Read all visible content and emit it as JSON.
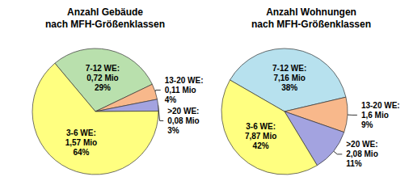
{
  "chart_data": [
    {
      "type": "pie",
      "title": "Anzahl Gebäude\nnach MFH-Größenklassen",
      "categories": [
        "7-12 WE:",
        "13-20 WE:",
        ">20 WE:",
        "3-6 WE:"
      ],
      "values": [
        29,
        4,
        3,
        64
      ],
      "value_labels": [
        "29%",
        "4%",
        "3%",
        "64%"
      ],
      "counts": [
        0.72,
        0.11,
        0.08,
        1.57
      ],
      "count_labels": [
        "0,72 Mio",
        "0,11 Mio",
        "0,08 Mio",
        "1,57 Mio"
      ],
      "colors": [
        "#b9e0ad",
        "#f8b88b",
        "#a3a3e0",
        "#ffff80"
      ],
      "data_labels": true
    },
    {
      "type": "pie",
      "title": "Anzahl Wohnungen\nnach MFH-Größenklassen",
      "categories": [
        "7-12 WE:",
        "13-20 WE:",
        ">20 WE:",
        "3-6 WE:"
      ],
      "values": [
        38,
        9,
        11,
        42
      ],
      "value_labels": [
        "38%",
        "9%",
        "11%",
        "42%"
      ],
      "counts": [
        7.16,
        1.6,
        2.08,
        7.87
      ],
      "count_labels": [
        "7,16 Mio",
        "1,6 Mio",
        "2,08 Mio",
        "7,87 Mio"
      ],
      "colors": [
        "#b7e1ee",
        "#f8b88b",
        "#a3a3e0",
        "#ffff80"
      ],
      "data_labels": true
    }
  ]
}
